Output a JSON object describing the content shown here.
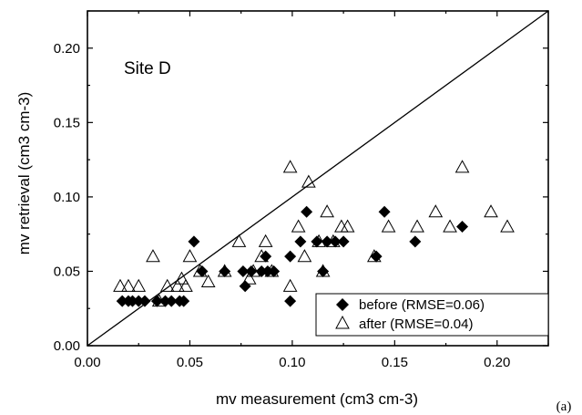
{
  "chart_data": {
    "type": "scatter",
    "title": "",
    "annotation": "Site D",
    "panel_label": "(a)",
    "xlabel": "mv measurement (cm3 cm-3)",
    "ylabel": "mv retrieval (cm3 cm-3)",
    "xlim": [
      0.0,
      0.225
    ],
    "ylim": [
      0.0,
      0.225
    ],
    "xticks": [
      "0.00",
      "0.05",
      "0.10",
      "0.15",
      "0.20"
    ],
    "yticks": [
      "0.00",
      "0.05",
      "0.10",
      "0.15",
      "0.20"
    ],
    "reference_line": "1:1",
    "grid": false,
    "legend_position": "bottom-right",
    "series": [
      {
        "name": "before (RMSE=0.06)",
        "marker": "filled-diamond",
        "color": "#000000",
        "points": [
          [
            0.017,
            0.03
          ],
          [
            0.02,
            0.03
          ],
          [
            0.022,
            0.03
          ],
          [
            0.025,
            0.03
          ],
          [
            0.028,
            0.03
          ],
          [
            0.034,
            0.03
          ],
          [
            0.038,
            0.03
          ],
          [
            0.041,
            0.03
          ],
          [
            0.045,
            0.03
          ],
          [
            0.047,
            0.03
          ],
          [
            0.052,
            0.07
          ],
          [
            0.056,
            0.05
          ],
          [
            0.067,
            0.05
          ],
          [
            0.076,
            0.05
          ],
          [
            0.077,
            0.04
          ],
          [
            0.08,
            0.05
          ],
          [
            0.085,
            0.05
          ],
          [
            0.087,
            0.06
          ],
          [
            0.088,
            0.05
          ],
          [
            0.091,
            0.05
          ],
          [
            0.099,
            0.03
          ],
          [
            0.099,
            0.06
          ],
          [
            0.104,
            0.07
          ],
          [
            0.107,
            0.09
          ],
          [
            0.112,
            0.07
          ],
          [
            0.115,
            0.05
          ],
          [
            0.117,
            0.07
          ],
          [
            0.121,
            0.07
          ],
          [
            0.125,
            0.07
          ],
          [
            0.141,
            0.06
          ],
          [
            0.145,
            0.09
          ],
          [
            0.16,
            0.07
          ],
          [
            0.183,
            0.08
          ]
        ]
      },
      {
        "name": "after (RMSE=0.04)",
        "marker": "open-triangle",
        "color": "#000000",
        "points": [
          [
            0.016,
            0.04
          ],
          [
            0.02,
            0.04
          ],
          [
            0.025,
            0.04
          ],
          [
            0.032,
            0.06
          ],
          [
            0.035,
            0.03
          ],
          [
            0.039,
            0.04
          ],
          [
            0.044,
            0.04
          ],
          [
            0.046,
            0.045
          ],
          [
            0.048,
            0.04
          ],
          [
            0.05,
            0.06
          ],
          [
            0.055,
            0.05
          ],
          [
            0.059,
            0.043
          ],
          [
            0.067,
            0.05
          ],
          [
            0.074,
            0.07
          ],
          [
            0.079,
            0.045
          ],
          [
            0.081,
            0.05
          ],
          [
            0.085,
            0.06
          ],
          [
            0.087,
            0.07
          ],
          [
            0.09,
            0.05
          ],
          [
            0.099,
            0.12
          ],
          [
            0.099,
            0.04
          ],
          [
            0.103,
            0.08
          ],
          [
            0.106,
            0.06
          ],
          [
            0.108,
            0.11
          ],
          [
            0.113,
            0.07
          ],
          [
            0.115,
            0.05
          ],
          [
            0.117,
            0.09
          ],
          [
            0.12,
            0.07
          ],
          [
            0.124,
            0.08
          ],
          [
            0.127,
            0.08
          ],
          [
            0.14,
            0.06
          ],
          [
            0.147,
            0.08
          ],
          [
            0.161,
            0.08
          ],
          [
            0.17,
            0.09
          ],
          [
            0.177,
            0.08
          ],
          [
            0.183,
            0.12
          ],
          [
            0.197,
            0.09
          ],
          [
            0.205,
            0.08
          ]
        ]
      }
    ]
  }
}
